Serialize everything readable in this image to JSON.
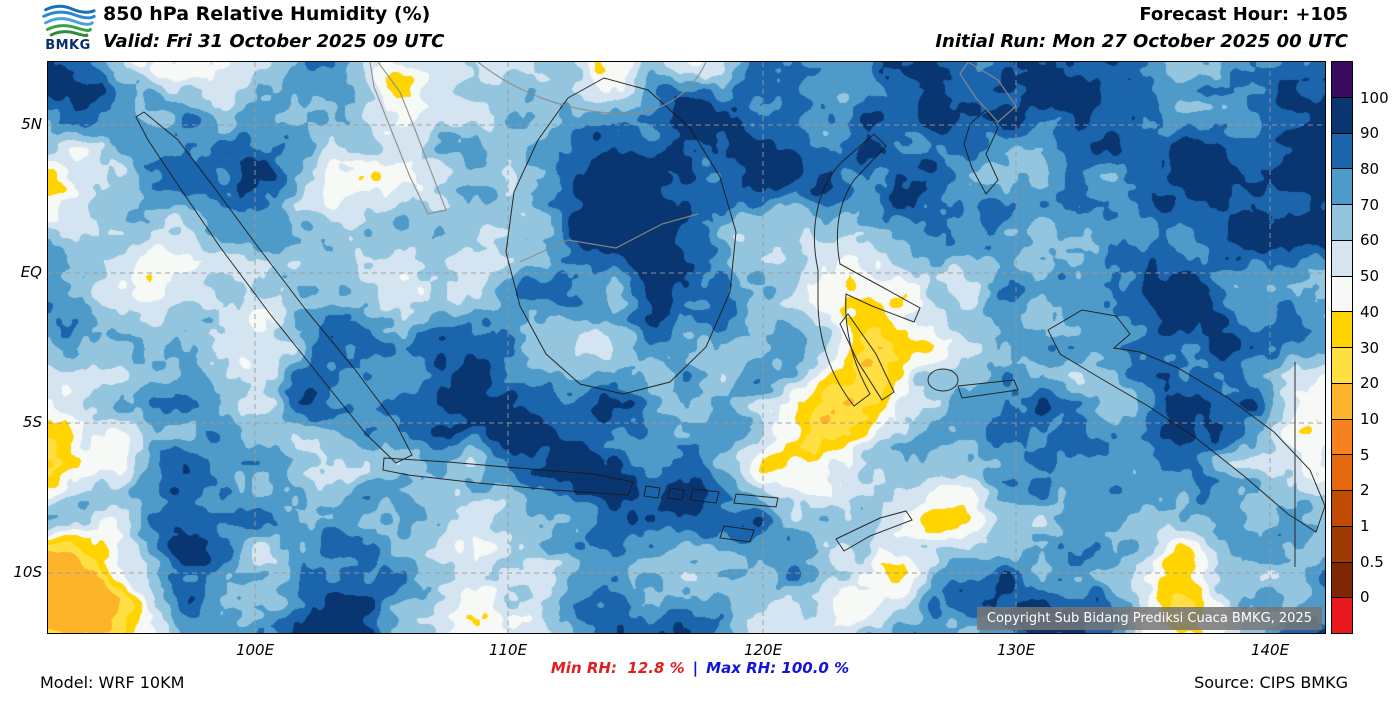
{
  "header": {
    "logo_text": "BMKG",
    "title": "850 hPa Relative Humidity (%)",
    "valid": "Valid: Fri 31 October 2025 09 UTC",
    "forecast_hour": "Forecast Hour: +105",
    "initial_run": "Initial Run: Mon 27 October 2025 00 UTC"
  },
  "map": {
    "lat_ticks": [
      "5N",
      "EQ",
      "5S",
      "10S"
    ],
    "lon_ticks": [
      "100E",
      "110E",
      "120E",
      "130E",
      "140E"
    ],
    "copyright": "Copyright Sub Bidang Prediksi Cuaca BMKG, 2025"
  },
  "colorbar": {
    "levels": [
      0,
      0.5,
      1,
      2,
      5,
      10,
      20,
      30,
      40,
      50,
      60,
      70,
      80,
      90,
      100
    ],
    "labels": [
      "100",
      "90",
      "80",
      "70",
      "60",
      "50",
      "40",
      "30",
      "20",
      "10",
      "5",
      "2",
      "1",
      "0.5",
      "0"
    ],
    "colors_top_to_bottom": [
      "#3a0a5e",
      "#093671",
      "#1b65ad",
      "#4e9bca",
      "#94c5df",
      "#d4e5f1",
      "#f7f9f6",
      "#ffd400",
      "#ffdf42",
      "#fdb32a",
      "#f5821f",
      "#e3680e",
      "#c14b02",
      "#9e3a04",
      "#7f2704",
      "#e8191c"
    ]
  },
  "footer": {
    "model": "Model: WRF 10KM",
    "min_rh": "Min RH:  12.8 %",
    "sep": "|",
    "max_rh": "Max RH: 100.0 %",
    "source": "Source: CIPS BMKG"
  },
  "colors": {
    "min_rh_text": "#e02020",
    "max_rh_text": "#1414d6",
    "map_yellow": "#ffd400",
    "map_dark_blue": "#093671"
  }
}
